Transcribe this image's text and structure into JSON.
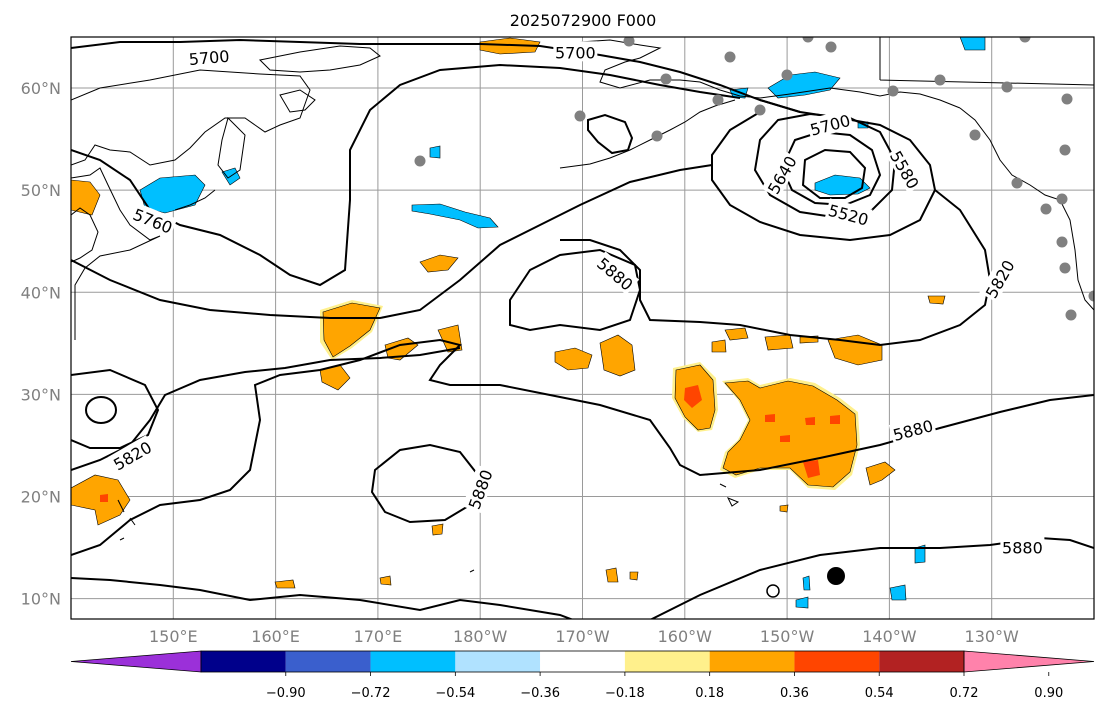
{
  "title": "2025072900 F000",
  "map": {
    "lon_min": 140,
    "lon_max": 240,
    "lat_min": 8,
    "lat_max": 65,
    "lon_ticks": [
      {
        "lon": 150,
        "label": "150°E"
      },
      {
        "lon": 160,
        "label": "160°E"
      },
      {
        "lon": 170,
        "label": "170°E"
      },
      {
        "lon": 180,
        "label": "180°W"
      },
      {
        "lon": 190,
        "label": "170°W"
      },
      {
        "lon": 200,
        "label": "160°W"
      },
      {
        "lon": 210,
        "label": "150°W"
      },
      {
        "lon": 220,
        "label": "140°W"
      },
      {
        "lon": 230,
        "label": "130°W"
      }
    ],
    "lat_ticks": [
      {
        "lat": 10,
        "label": "10°N"
      },
      {
        "lat": 20,
        "label": "20°N"
      },
      {
        "lat": 30,
        "label": "30°N"
      },
      {
        "lat": 40,
        "label": "40°N"
      },
      {
        "lat": 50,
        "label": "50°N"
      },
      {
        "lat": 60,
        "label": "60°N"
      }
    ],
    "contour_labels": [
      {
        "text": "5700",
        "lon": 153.5,
        "lat": 63.0,
        "rot": -5
      },
      {
        "text": "5700",
        "lon": 189.3,
        "lat": 63.5,
        "rot": 0
      },
      {
        "text": "5760",
        "lon": 148.0,
        "lat": 47.0,
        "rot": 22
      },
      {
        "text": "5700",
        "lon": 214.2,
        "lat": 56.4,
        "rot": -15
      },
      {
        "text": "5640",
        "lon": 209.5,
        "lat": 51.5,
        "rot": -60
      },
      {
        "text": "5580",
        "lon": 221.5,
        "lat": 52.0,
        "rot": 60
      },
      {
        "text": "5520",
        "lon": 216.0,
        "lat": 47.6,
        "rot": 15
      },
      {
        "text": "5880",
        "lon": 193.2,
        "lat": 41.8,
        "rot": 40
      },
      {
        "text": "5820",
        "lon": 230.8,
        "lat": 41.3,
        "rot": -60
      },
      {
        "text": "5820",
        "lon": 146.0,
        "lat": 24.0,
        "rot": -30
      },
      {
        "text": "5880",
        "lon": 222.3,
        "lat": 26.5,
        "rot": -15
      },
      {
        "text": "5880",
        "lon": 180.0,
        "lat": 20.7,
        "rot": -70
      },
      {
        "text": "5880",
        "lon": 233.0,
        "lat": 15.0,
        "rot": 0
      }
    ]
  },
  "colorbar": {
    "levels": [
      "−0.90",
      "−0.72",
      "−0.54",
      "−0.36",
      "−0.18",
      "0.18",
      "0.36",
      "0.54",
      "0.72",
      "0.90"
    ],
    "colors": [
      "#9b30d9",
      "#00008b",
      "#3a5fcd",
      "#00bfff",
      "#b0e2ff",
      "#ffffff",
      "#fff08c",
      "#ffa500",
      "#ff4500",
      "#b22222",
      "#ff82ab"
    ]
  }
}
